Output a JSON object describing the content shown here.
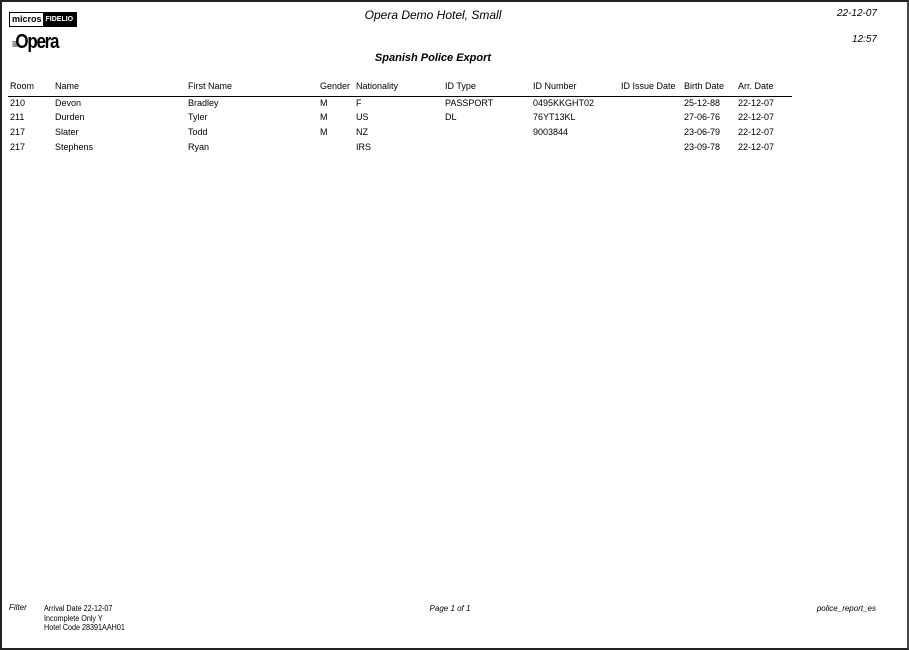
{
  "header": {
    "logo_micros": "micros",
    "logo_fidelio": "FIDELIO",
    "logo_opera": "Opera",
    "hotel": "Opera Demo Hotel, Small",
    "report_title": "Spanish Police Export",
    "date": "22-12-07",
    "time": "12:57"
  },
  "table": {
    "columns": [
      "Room",
      "Name",
      "First Name",
      "Gender",
      "Nationality",
      "ID Type",
      "ID Number",
      "ID Issue Date",
      "Birth Date",
      "Arr. Date"
    ],
    "rows": [
      [
        "210",
        "Devon",
        "Bradley",
        "M",
        "F",
        "PASSPORT",
        "0495KKGHT02",
        "",
        "25-12-88",
        "22-12-07"
      ],
      [
        "211",
        "Durden",
        "Tyler",
        "M",
        "US",
        "DL",
        "76YT13KL",
        "",
        "27-06-76",
        "22-12-07"
      ],
      [
        "217",
        "Slater",
        "Todd",
        "M",
        "NZ",
        "",
        "9003844",
        "",
        "23-06-79",
        "22-12-07"
      ],
      [
        "217",
        "Stephens",
        "Ryan",
        "",
        "IRS",
        "",
        "",
        "",
        "23-09-78",
        "22-12-07"
      ]
    ]
  },
  "footer": {
    "filter_label": "Filter",
    "filters": [
      "Arrival Date 22-12-07",
      "Incomplete Only Y",
      "Hotel Code 28391AAH01"
    ],
    "page": "Page 1 of 1",
    "report_name": "police_report_es"
  }
}
